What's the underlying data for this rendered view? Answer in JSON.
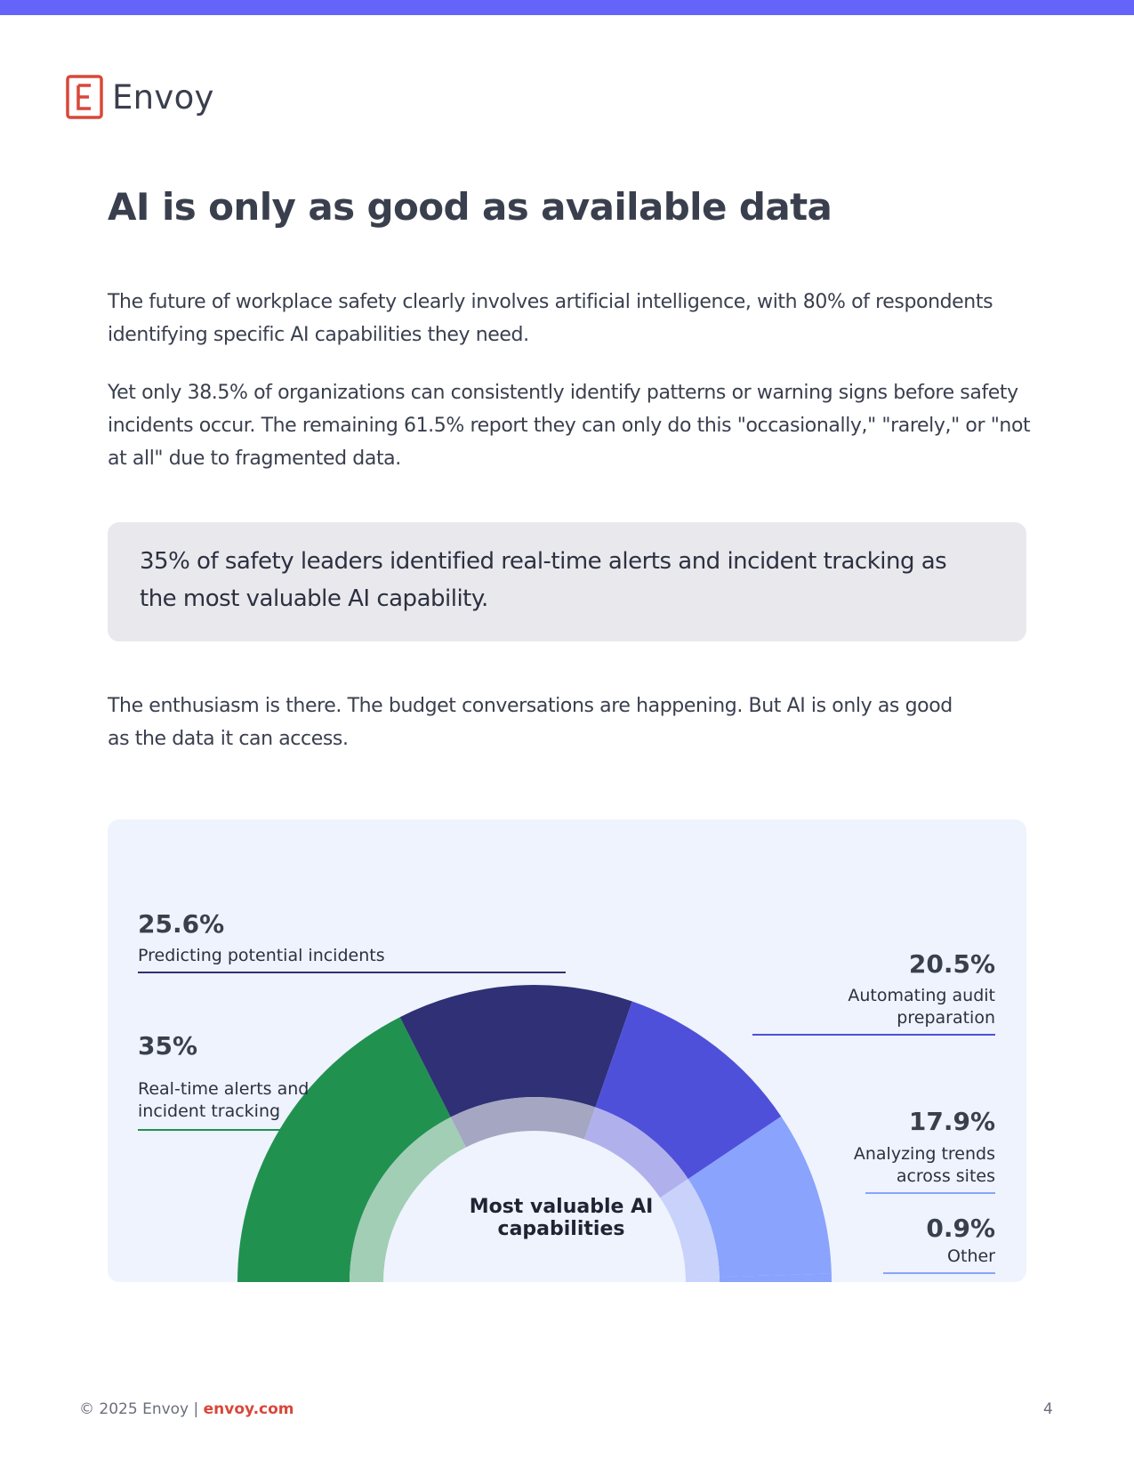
{
  "brand": {
    "name": "Envoy",
    "logo_letter": "E",
    "logo_color": "#d9473a",
    "accent": "#6464fb"
  },
  "title": "AI is only as good as available data",
  "paragraphs": [
    "The future of workplace safety clearly involves artificial intelligence, with 80% of respondents identifying specific AI capabilities they need.",
    "Yet only 38.5% of organizations can consistently identify patterns or warning signs before safety incidents occur. The remaining 61.5% report they can only do this \"occasionally,\" \"rarely,\" or \"not at all\" due to fragmented data.",
    "The enthusiasm is there. The budget conversations are happening. But AI is only as good as the data it can access."
  ],
  "callout": {
    "lines": [
      "35% of safety leaders identified real-time alerts and incident tracking as",
      "the most valuable AI capability."
    ]
  },
  "chart_data": {
    "type": "pie",
    "subtype": "half-donut",
    "center_title_lines": [
      "Most valuable AI",
      "capabilities"
    ],
    "slices": [
      {
        "name_lines": [
          "Real-time alerts and",
          "incident tracking"
        ],
        "value": 35,
        "label": "35%",
        "color": "#219150",
        "inner_color": "#a1ceb5"
      },
      {
        "name_lines": [
          "Predicting potential incidents"
        ],
        "value": 25.6,
        "label": "25.6%",
        "color": "#2f3075",
        "inner_color": "#a5a6c2"
      },
      {
        "name_lines": [
          "Automating audit",
          "preparation"
        ],
        "value": 20.5,
        "label": "20.5%",
        "color": "#4f50d9",
        "inner_color": "#b0b1ec"
      },
      {
        "name_lines": [
          "Analyzing trends",
          "across sites"
        ],
        "value": 17.9,
        "label": "17.9%",
        "color": "#8aa3fc",
        "inner_color": "#c8d2fb"
      },
      {
        "name_lines": [
          "Other"
        ],
        "value": 0.9,
        "label": "0.9%",
        "color": "#8aa3fc",
        "inner_color": "#c8d2fb"
      }
    ]
  },
  "footer": {
    "copyright": "© 2025 Envoy | ",
    "link": "envoy.com",
    "page_number": "4"
  }
}
